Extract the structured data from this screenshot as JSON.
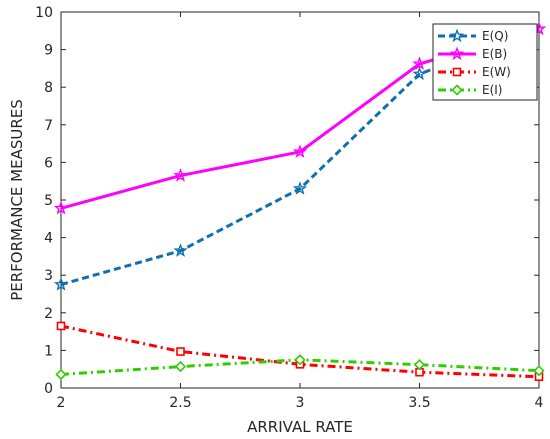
{
  "chart_data": {
    "type": "line",
    "title": "",
    "xlabel": "ARRIVAL RATE",
    "ylabel": "PERFORMANCE MEASURES",
    "x": [
      2,
      2.5,
      3,
      3.5,
      4
    ],
    "xlim": [
      2,
      4
    ],
    "ylim": [
      0,
      10
    ],
    "xticks": [
      "2",
      "2.5",
      "3",
      "3.5",
      "4"
    ],
    "yticks": [
      "0",
      "1",
      "2",
      "3",
      "4",
      "5",
      "6",
      "7",
      "8",
      "9",
      "10"
    ],
    "grid": false,
    "legend_position": "top-right",
    "series": [
      {
        "name": "E(Q)",
        "values": [
          2.75,
          3.65,
          5.3,
          8.35,
          9.55
        ],
        "color": "#0f6fb0",
        "dash": "dashed",
        "marker": "star"
      },
      {
        "name": "E(B)",
        "values": [
          4.78,
          5.65,
          6.28,
          8.62,
          9.55
        ],
        "color": "#ff00ff",
        "dash": "solid",
        "marker": "star"
      },
      {
        "name": "E(W)",
        "values": [
          1.65,
          0.97,
          0.63,
          0.42,
          0.3
        ],
        "color": "#ff0000",
        "dash": "dashdot",
        "marker": "square"
      },
      {
        "name": "E(I)",
        "values": [
          0.36,
          0.57,
          0.75,
          0.62,
          0.46
        ],
        "color": "#33cc00",
        "dash": "dashdot",
        "marker": "diamond"
      }
    ]
  }
}
